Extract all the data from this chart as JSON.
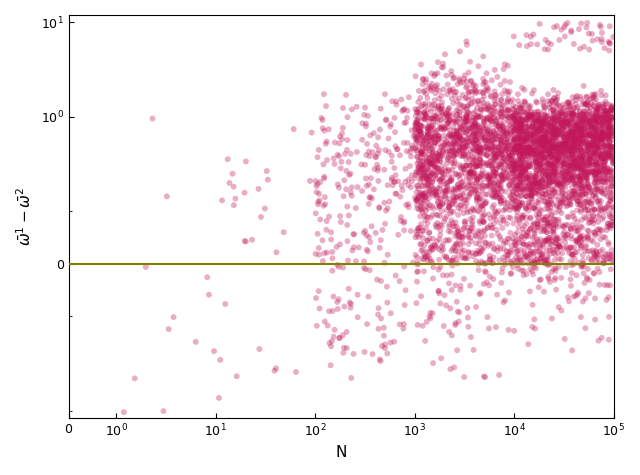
{
  "title": "",
  "xlabel": "N",
  "ylabel": "$\\bar{\\omega}^1 - \\bar{\\omega}^2$",
  "scatter_color": "#C2185B",
  "scatter_alpha": 0.35,
  "scatter_size": 18,
  "hline_y": 0,
  "hline_color": "#808000",
  "hline_lw": 1.5,
  "seed": 42,
  "n_points": 5000,
  "xlim_max": 100000,
  "ylim_min": -1.2,
  "ylim_max": 12
}
